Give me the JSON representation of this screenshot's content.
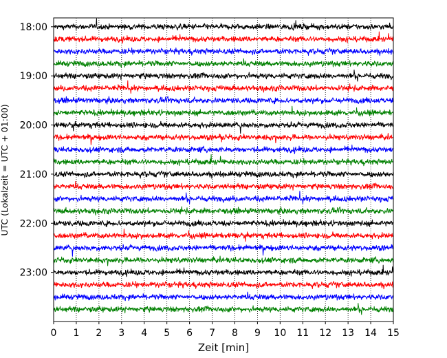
{
  "chart_data": {
    "type": "line",
    "title": "",
    "xlabel": "Zeit  [min]",
    "ylabel": "UTC (Lokalzeit = UTC + 01:00)",
    "xlim": [
      0,
      15
    ],
    "x_ticks": [
      0,
      1,
      2,
      3,
      4,
      5,
      6,
      7,
      8,
      9,
      10,
      11,
      12,
      13,
      14,
      15
    ],
    "x_tick_labels": [
      "0",
      "1",
      "2",
      "3",
      "4",
      "5",
      "6",
      "7",
      "8",
      "9",
      "10",
      "11",
      "12",
      "13",
      "14",
      "15"
    ],
    "y_tick_labels": [
      "18:00",
      "19:00",
      "20:00",
      "21:00",
      "22:00",
      "23:00"
    ],
    "y_tick_hours": [
      0,
      1,
      2,
      3,
      4,
      5
    ],
    "y_range_hours": [
      -0.18,
      6.0
    ],
    "row_interval_min": 15,
    "rows": 24,
    "row_colors": [
      "#000000",
      "#ff0000",
      "#0000ff",
      "#008000"
    ],
    "grid_x": true,
    "grid_style": "dotted",
    "trace_kind": "seismogram-noise",
    "trace_amplitude_rel": 0.12
  }
}
